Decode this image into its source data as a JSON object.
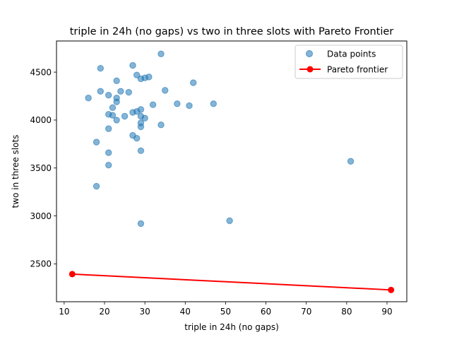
{
  "chart_data": {
    "type": "scatter",
    "title": "triple in 24h (no gaps) vs two in three slots with Pareto Frontier",
    "xlabel": "triple in 24h (no gaps)",
    "ylabel": "two in three slots",
    "xlim": [
      8.1,
      94.9
    ],
    "ylim": [
      2105,
      4825
    ],
    "x_ticks": [
      10,
      20,
      30,
      40,
      50,
      60,
      70,
      80,
      90
    ],
    "y_ticks": [
      2500,
      3000,
      3500,
      4000,
      4500
    ],
    "grid": false,
    "legend_position": "top-right",
    "colors": {
      "points": "#1f77b4",
      "frontier": "#ff0000"
    },
    "series": [
      {
        "name": "Data points",
        "kind": "scatter",
        "points": [
          [
            16,
            4230
          ],
          [
            19,
            4540
          ],
          [
            19,
            4300
          ],
          [
            21,
            4260
          ],
          [
            22,
            4130
          ],
          [
            23,
            4410
          ],
          [
            24,
            4300
          ],
          [
            23,
            4230
          ],
          [
            23,
            4190
          ],
          [
            26,
            4290
          ],
          [
            27,
            4570
          ],
          [
            28,
            4470
          ],
          [
            29,
            4430
          ],
          [
            30,
            4440
          ],
          [
            31,
            4450
          ],
          [
            34,
            4690
          ],
          [
            35,
            4310
          ],
          [
            42,
            4390
          ],
          [
            32,
            4160
          ],
          [
            38,
            4170
          ],
          [
            41,
            4150
          ],
          [
            47,
            4170
          ],
          [
            21,
            4060
          ],
          [
            22,
            4050
          ],
          [
            23,
            4000
          ],
          [
            25,
            4040
          ],
          [
            27,
            4080
          ],
          [
            28,
            4090
          ],
          [
            29,
            4110
          ],
          [
            29,
            4040
          ],
          [
            30,
            4020
          ],
          [
            29,
            3970
          ],
          [
            29,
            3930
          ],
          [
            34,
            3950
          ],
          [
            21,
            3910
          ],
          [
            27,
            3840
          ],
          [
            28,
            3810
          ],
          [
            18,
            3770
          ],
          [
            21,
            3660
          ],
          [
            29,
            3680
          ],
          [
            21,
            3530
          ],
          [
            18,
            3310
          ],
          [
            81,
            3570
          ],
          [
            51,
            2950
          ],
          [
            29,
            2920
          ]
        ]
      },
      {
        "name": "Pareto frontier",
        "kind": "line",
        "points": [
          [
            12,
            2393
          ],
          [
            91,
            2228
          ]
        ]
      }
    ]
  }
}
